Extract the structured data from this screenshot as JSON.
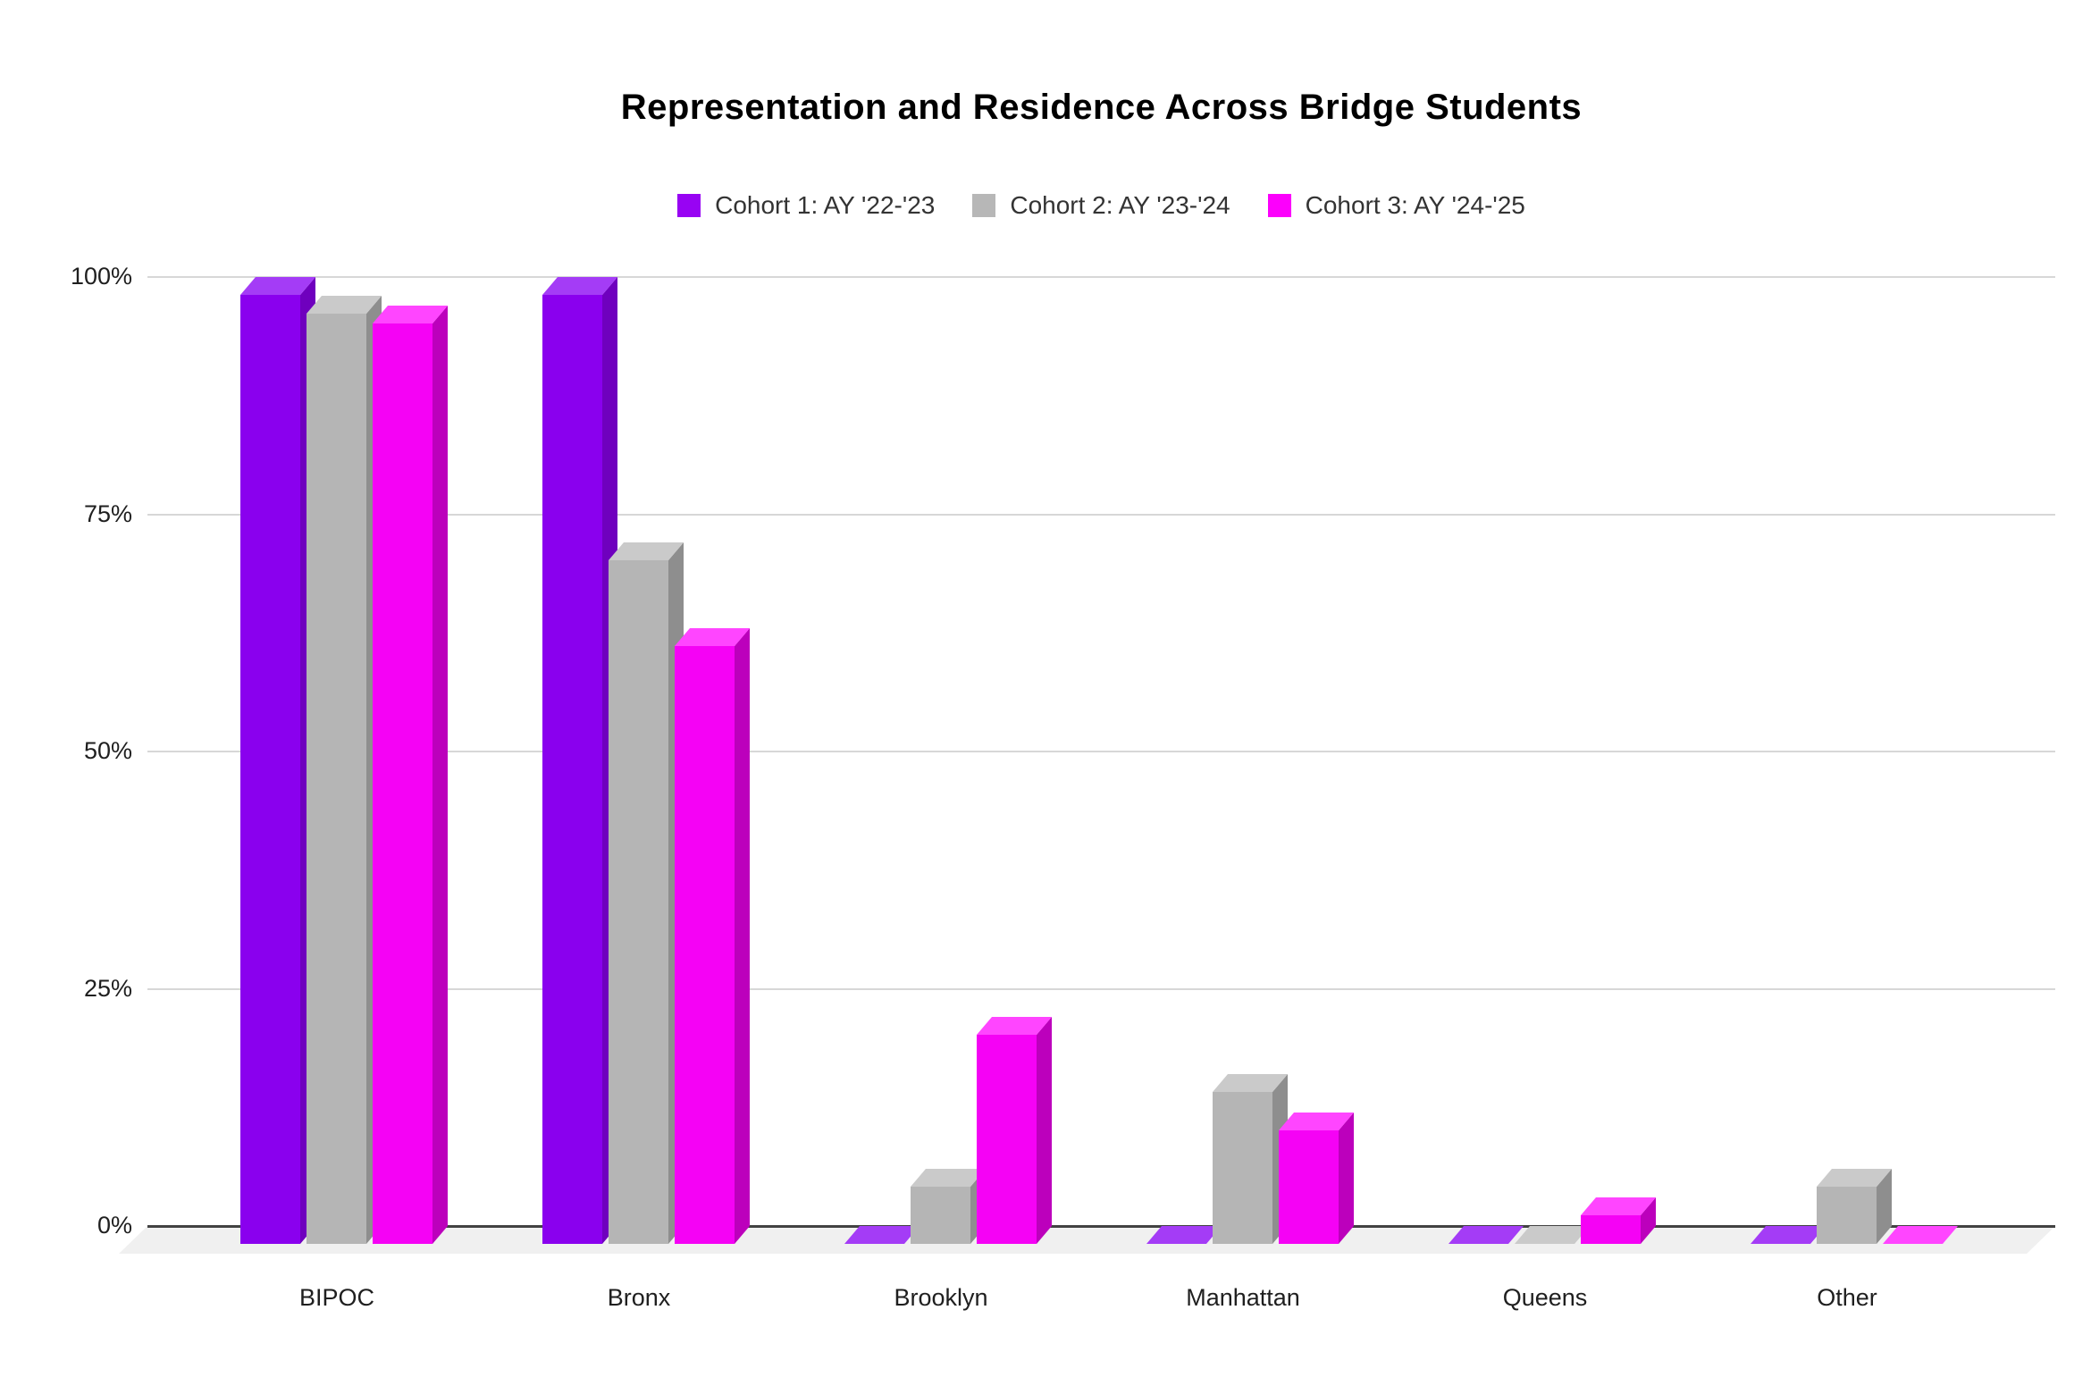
{
  "title": "Representation and Residence Across Bridge Students",
  "chart_data": {
    "type": "bar",
    "subtype": "3d-column-grouped",
    "title": "Representation and Residence Across Bridge Students",
    "categories": [
      "BIPOC",
      "Bronx",
      "Brooklyn",
      "Manhattan",
      "Queens",
      "Other"
    ],
    "series": [
      {
        "name": "Cohort 1: AY '22-'23",
        "values": [
          100,
          100,
          0,
          0,
          0,
          0
        ],
        "legend_color": "#9803f3",
        "front_color": "#8a00ee",
        "top_color": "#a43cf6",
        "side_color": "#6f00be"
      },
      {
        "name": "Cohort 2: AY '23-'24",
        "values": [
          98,
          72,
          6,
          16,
          0,
          6
        ],
        "legend_color": "#b7b7b7",
        "front_color": "#b5b5b5",
        "top_color": "#cacaca",
        "side_color": "#8e8e8e"
      },
      {
        "name": "Cohort 3: AY '24-'25",
        "values": [
          97,
          63,
          22,
          12,
          3,
          0
        ],
        "legend_color": "#fc00fc",
        "front_color": "#f502f5",
        "top_color": "#ff45ff",
        "side_color": "#bc00bc"
      }
    ],
    "y_axis": {
      "ticks": [
        {
          "label": "100%",
          "value": 100
        },
        {
          "label": "75%",
          "value": 75
        },
        {
          "label": "50%",
          "value": 50
        },
        {
          "label": "25%",
          "value": 25
        },
        {
          "label": "0%",
          "value": 0
        }
      ],
      "ylim": [
        0,
        100
      ]
    },
    "grid": true,
    "legend_position": "top",
    "background_color": "#ffffff",
    "floor_color": "#f0f0f0",
    "gridline_color": "#d7d7d7",
    "axis_line_color": "#424242"
  }
}
